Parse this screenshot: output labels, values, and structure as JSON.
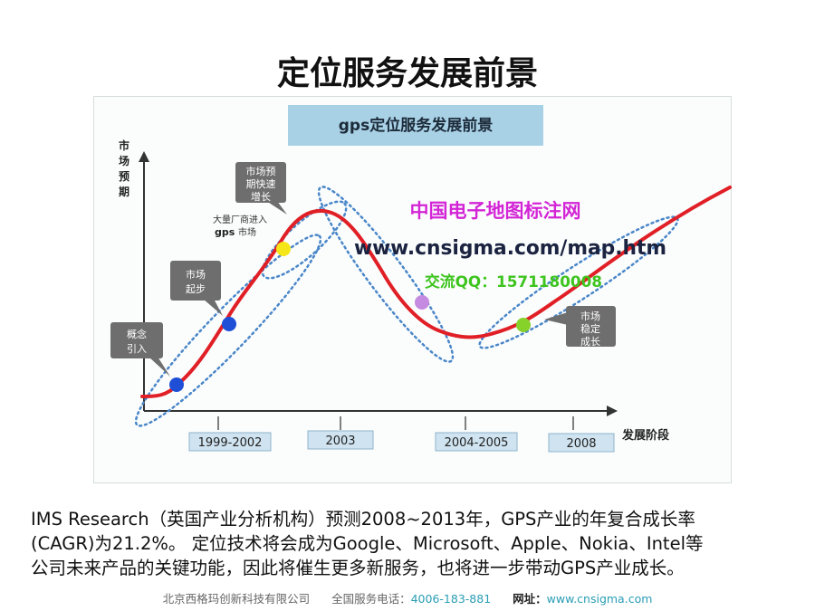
{
  "slide": {
    "title": "定位服务发展前景"
  },
  "figure": {
    "banner_title": "gps定位服务发展前景",
    "y_axis_label": [
      "市",
      "场",
      "预",
      "期"
    ],
    "x_axis_label": "发展阶段",
    "periods": [
      "1999-2002",
      "2003",
      "2004-2005",
      "2008"
    ],
    "stage_callouts": [
      {
        "lines": [
          "概念",
          "引入"
        ]
      },
      {
        "lines": [
          "市场",
          "起步"
        ]
      },
      {
        "lines": [
          "市场预",
          "期快速",
          "增长"
        ]
      },
      {
        "lines": [
          "市场",
          "稳定",
          "成长"
        ]
      }
    ],
    "annotation": {
      "line1": "大量厂商进入",
      "line2_bold": "gps",
      "line2_rest": "市场"
    },
    "watermark": {
      "name": "中国电子地图标注网",
      "url": "www.cnsigma.com/map.htm",
      "qq": "交流QQ：1571180008"
    },
    "colors": {
      "banner": "#a9d1e6",
      "curve": "#e01f26",
      "dotted_band": "#4a86c8",
      "callout": "#6e6e6e",
      "period_box": "#cfe3f0",
      "dot_blue": "#1e4fd6",
      "dot_yellow": "#f5e61a",
      "dot_purple": "#c58be0",
      "dot_green": "#86d12a",
      "watermark_name": "#d325d6",
      "watermark_qq": "#3ec41e"
    }
  },
  "caption": {
    "line1": "IMS Research（英国产业分析机构）预测2008~2013年，GPS产业的年复合成长率",
    "line2": "(CAGR)为21.2%。 定位技术将会成为Google、Microsoft、Apple、Nokia、Intel等",
    "line3": "公司未来产品的关键功能，因此将催生更多新服务，也将进一步带动GPS产业成长。"
  },
  "footer": {
    "company": "北京西格玛创新科技有限公司",
    "hotline_label": "全国服务电话：",
    "hotline": "4006-183-881",
    "site_label": "网址：",
    "site": "www.cnsigma.com"
  }
}
